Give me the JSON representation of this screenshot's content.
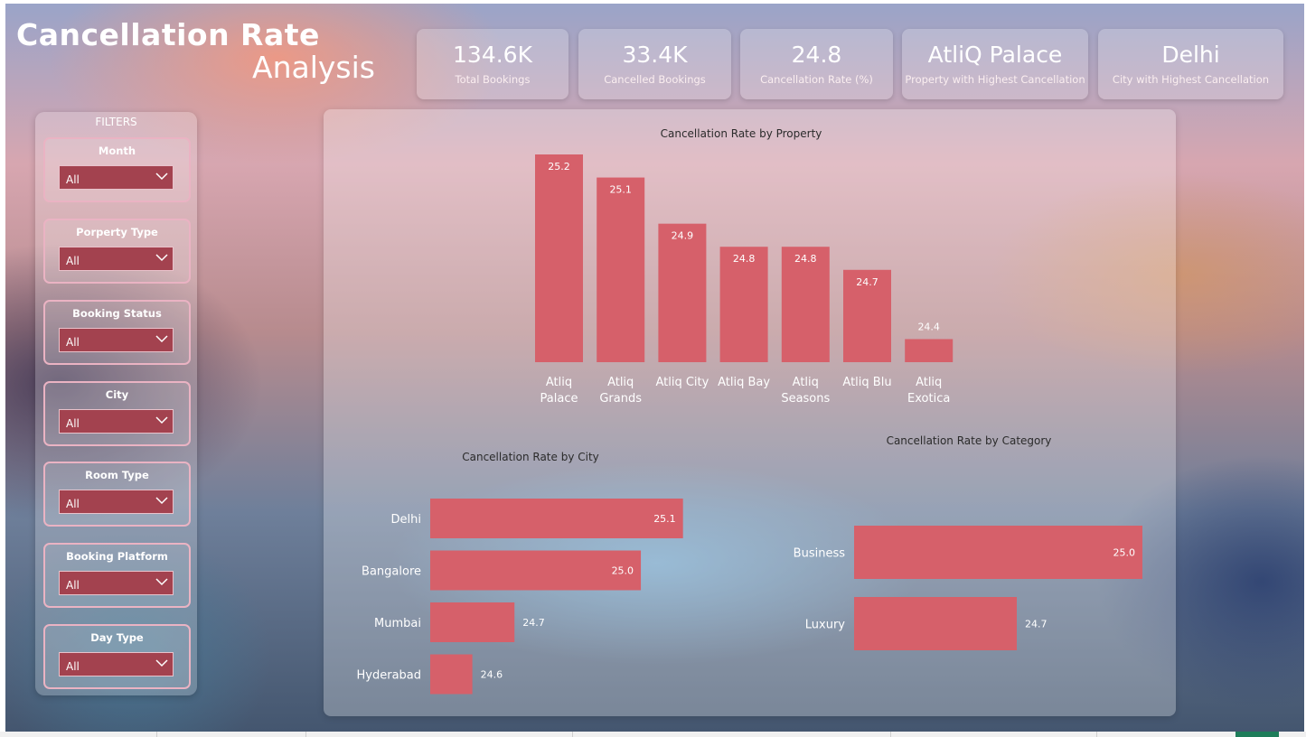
{
  "header": {
    "title_line1": "Cancellation Rate",
    "title_line2": "Analysis"
  },
  "kpis": [
    {
      "value": "134.6K",
      "label": "Total Bookings"
    },
    {
      "value": "33.4K",
      "label": "Cancelled Bookings"
    },
    {
      "value": "24.8",
      "label": "Cancellation Rate (%)"
    },
    {
      "value": "AtliQ Palace",
      "label": "Property with Highest Cancellation"
    },
    {
      "value": "Delhi",
      "label": "City with Highest Cancellation"
    }
  ],
  "filters": {
    "title": "FILTERS",
    "items": [
      {
        "label": "Month",
        "value": "All"
      },
      {
        "label": "Porperty Type",
        "value": "All"
      },
      {
        "label": "Booking Status",
        "value": "All"
      },
      {
        "label": "City",
        "value": "All"
      },
      {
        "label": "Room Type",
        "value": "All"
      },
      {
        "label": "Booking Platform",
        "value": "All"
      },
      {
        "label": "Day Type",
        "value": "All"
      }
    ]
  },
  "colors": {
    "bar": "#d6606a",
    "text_dark": "#2b2b2b",
    "label_light": "#ffffff"
  },
  "chart_data": [
    {
      "type": "bar",
      "title": "Cancellation Rate by Property",
      "categories": [
        "Atliq Palace",
        "Atliq Grands",
        "Atliq City",
        "Atliq Bay",
        "Atliq Seasons",
        "Atliq Blu",
        "Atliq Exotica"
      ],
      "values": [
        25.2,
        25.1,
        24.9,
        24.8,
        24.8,
        24.7,
        24.4
      ],
      "value_labels": [
        "25.2",
        "25.1",
        "24.9",
        "24.8",
        "24.8",
        "24.7",
        "24.4"
      ],
      "ylim": [
        24.3,
        25.2
      ]
    },
    {
      "type": "bar",
      "orientation": "horizontal",
      "title": "Cancellation Rate by City",
      "categories": [
        "Delhi",
        "Bangalore",
        "Mumbai",
        "Hyderabad"
      ],
      "values": [
        25.1,
        25.0,
        24.7,
        24.6
      ],
      "value_labels": [
        "25.1",
        "25.0",
        "24.7",
        "24.6"
      ],
      "xlim": [
        24.5,
        25.15
      ]
    },
    {
      "type": "bar",
      "orientation": "horizontal",
      "title": "Cancellation Rate by Category",
      "categories": [
        "Business",
        "Luxury"
      ],
      "values": [
        25.0,
        24.7
      ],
      "value_labels": [
        "25.0",
        "24.7"
      ],
      "xlim": [
        24.4,
        25.0
      ]
    }
  ]
}
